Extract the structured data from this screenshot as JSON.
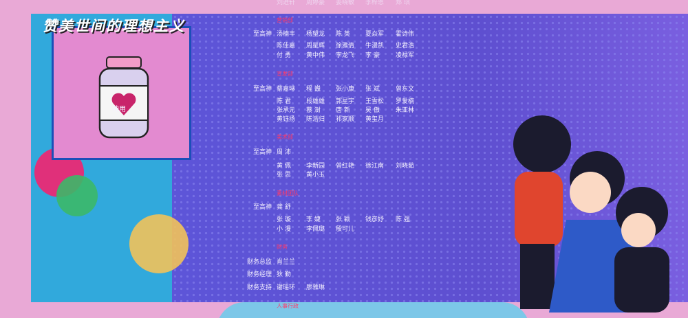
{
  "header": {
    "title": "赞美世间的理想主义"
  },
  "credits": {
    "sections": [
      {
        "rows": [
          {
            "names": [
              "刘进轩",
              "周婷豪",
              "姜晓敏",
              "李梓恩",
              "郑 琪"
            ]
          }
        ]
      },
      {
        "heading": "营销部",
        "rows": [
          {
            "role": "至高神",
            "names": [
              "汤楠丰",
              "杨望龙",
              "陈 英",
              "夏焱军",
              "霍诗伟"
            ]
          },
          {
            "names": [
              "陈佳嘉",
              "周星辉",
              "徐雅倩",
              "牛漫凯",
              "史君浩"
            ]
          },
          {
            "names": [
              "付 勇",
              "黄中伟",
              "李龙飞",
              "李 豪",
              "凌禄军"
            ]
          }
        ]
      },
      {
        "heading": "宣发部",
        "rows": [
          {
            "role": "至高神",
            "names": [
              "蔡嘉琳",
              "程 巍",
              "张小康",
              "张 斌",
              "曾东文"
            ]
          },
          {
            "names": [
              "陈 君",
              "段雄雄",
              "郭星宇",
              "王雪松",
              "罗爱楠"
            ]
          },
          {
            "names": [
              "张承元",
              "蔡 澍",
              "唐 新",
              "吴 傲",
              "朱亚林"
            ]
          },
          {
            "names": [
              "黄钰扬",
              "陈浩归",
              "祁家顺",
              "黄玺月"
            ]
          }
        ]
      },
      {
        "heading": "美术部",
        "rows": [
          {
            "role": "至高神",
            "names": [
              "周 沛"
            ]
          },
          {
            "names": [
              "黄 佩",
              "李新园",
              "曾红艳",
              "徐江南",
              "刘晓茹"
            ]
          },
          {
            "names": [
              "张 思",
              "黄小玉"
            ]
          }
        ]
      },
      {
        "heading": "素材团队",
        "rows": [
          {
            "role": "至高神",
            "names": [
              "龚 舒"
            ]
          },
          {
            "names": [
              "张 璇",
              "李 婕",
              "张 颖",
              "钱彦妤",
              "陈 强"
            ]
          },
          {
            "names": [
              "小 漫",
              "李佩璐",
              "殷可儿"
            ]
          }
        ]
      },
      {
        "heading": "财务",
        "rows": [
          {
            "role": "财务总监",
            "names": [
              "肖兰兰"
            ]
          },
          {
            "role": "财务经理",
            "names": [
              "狄 勤"
            ]
          },
          {
            "role": "财务支持",
            "names": [
              "谢瑶环",
              "廖雅琳"
            ]
          }
        ]
      },
      {
        "heading": "人事行政",
        "rows": []
      }
    ]
  },
  "badge": {
    "label": "神用"
  }
}
